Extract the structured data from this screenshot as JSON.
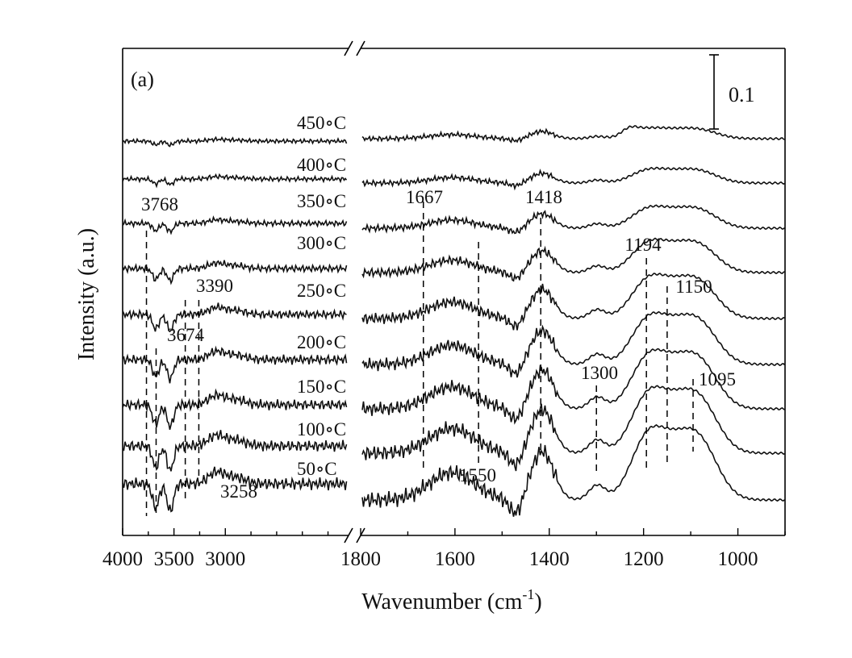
{
  "chart_data": {
    "type": "line",
    "panel_label": "(a)",
    "xlabel_main": "Wavenumber (cm",
    "xlabel_sup": "-1",
    "xlabel_close": ")",
    "ylabel": "Intensity (a.u.)",
    "x_axis_break": true,
    "x_segments": [
      {
        "xlim": [
          4000,
          1800
        ],
        "ticks": [
          4000,
          3500,
          3000
        ]
      },
      {
        "xlim": [
          1800,
          900
        ],
        "ticks": [
          1800,
          1600,
          1400,
          1200,
          1000
        ]
      }
    ],
    "scale_bar": {
      "value": 0.1,
      "label": "0.1"
    },
    "series": [
      {
        "name": "450°C",
        "label": "450∘C"
      },
      {
        "name": "400°C",
        "label": "400∘C"
      },
      {
        "name": "350°C",
        "label": "350∘C"
      },
      {
        "name": "300°C",
        "label": "300∘C"
      },
      {
        "name": "250°C",
        "label": "250∘C"
      },
      {
        "name": "200°C",
        "label": "200∘C"
      },
      {
        "name": "150°C",
        "label": "150∘C"
      },
      {
        "name": "100°C",
        "label": "100∘C"
      },
      {
        "name": "50°C",
        "label": "50∘C"
      }
    ],
    "peak_markers": [
      3768,
      3674,
      3390,
      3258,
      1667,
      1550,
      1418,
      1300,
      1194,
      1150,
      1095
    ],
    "peak_labels": [
      "3768",
      "3674",
      "3390",
      "3258",
      "1667",
      "1550",
      "1418",
      "1300",
      "1194",
      "1150",
      "1095"
    ]
  }
}
